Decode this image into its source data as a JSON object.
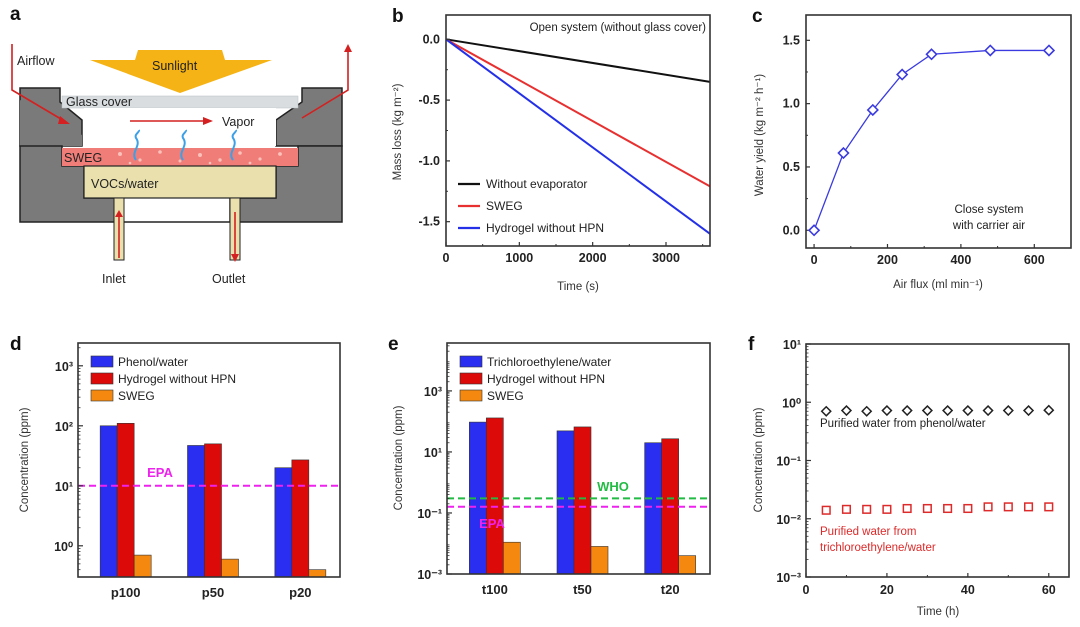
{
  "figure": {
    "panels": [
      "a",
      "b",
      "c",
      "d",
      "e",
      "f"
    ]
  },
  "diagram_a": {
    "letter": "a",
    "labels": {
      "airflow": "Airflow",
      "sunlight": "Sunlight",
      "glass_cover": "Glass cover",
      "vapor": "Vapor",
      "sweg": "SWEG",
      "vocs_water": "VOCs/water",
      "inlet": "Inlet",
      "outlet": "Outlet"
    },
    "colors": {
      "body": "#7a7a7a",
      "sunlight": "#f5b315",
      "glass": "#d9dde0",
      "sweg": "#f07d78",
      "liquid": "#e9e0ad",
      "flow_arrow": "#d42020",
      "vapor": "#3aa0e8"
    }
  },
  "chart_data": [
    {
      "id": "b",
      "letter": "b",
      "type": "line",
      "title": "Open system (without glass cover)",
      "xlabel": "Time (s)",
      "ylabel": "Mass loss (kg m⁻²)",
      "xlim": [
        0,
        3600
      ],
      "ylim": [
        -1.7,
        0.2
      ],
      "xticks": [
        0,
        1000,
        2000,
        3000
      ],
      "xtick_labels": [
        "0",
        "1000",
        "2000",
        "3000"
      ],
      "yticks": [
        0.0,
        -0.5,
        -1.0,
        -1.5
      ],
      "ytick_labels": [
        "0.0",
        "-0.5",
        "-1.0",
        "-1.5"
      ],
      "grid": false,
      "legend_position": "bottom-left",
      "series": [
        {
          "name": "Without evaporator",
          "color": "#111111",
          "x": [
            0,
            3600
          ],
          "y": [
            0,
            -0.35
          ]
        },
        {
          "name": "SWEG",
          "color": "#e83030",
          "x": [
            0,
            3600
          ],
          "y": [
            0,
            -1.21
          ]
        },
        {
          "name": "Hydrogel without HPN",
          "color": "#2430e8",
          "x": [
            0,
            3600
          ],
          "y": [
            0,
            -1.6
          ]
        }
      ]
    },
    {
      "id": "c",
      "letter": "c",
      "type": "line",
      "title": "",
      "annotation": [
        "Close system",
        "with carrier air"
      ],
      "xlabel": "Air flux (ml min⁻¹)",
      "ylabel": "Water yield (kg m⁻² h⁻¹)",
      "xlim": [
        -22,
        700
      ],
      "ylim": [
        -0.14,
        1.7
      ],
      "xticks": [
        0,
        200,
        400,
        600
      ],
      "xtick_labels": [
        "0",
        "200",
        "400",
        "600"
      ],
      "yticks": [
        0.0,
        0.5,
        1.0,
        1.5
      ],
      "ytick_labels": [
        "0.0",
        "0.5",
        "1.0",
        "1.5"
      ],
      "grid": false,
      "marker": "diamond-open",
      "series": [
        {
          "name": "Water yield",
          "color": "#3a3ae0",
          "x": [
            0,
            80,
            160,
            240,
            320,
            480,
            640
          ],
          "y": [
            0.0,
            0.61,
            0.95,
            1.23,
            1.39,
            1.42,
            1.42
          ]
        }
      ]
    },
    {
      "id": "d",
      "letter": "d",
      "type": "bar",
      "yscale": "log",
      "xlabel": "",
      "ylabel": "Concentration (ppm)",
      "ylim_log10": [
        -0.52,
        3.38
      ],
      "yticks_log10": [
        0,
        1,
        2,
        3
      ],
      "ytick_labels": [
        "10⁰",
        "10¹",
        "10²",
        "10³"
      ],
      "categories": [
        "p100",
        "p50",
        "p20"
      ],
      "legend_position": "top-left",
      "series": [
        {
          "name": "Phenol/water",
          "color": "#2a2ef0",
          "values": [
            100,
            47,
            20
          ]
        },
        {
          "name": "Hydrogel without HPN",
          "color": "#dd0a0a",
          "values": [
            110,
            50,
            27
          ]
        },
        {
          "name": "SWEG",
          "color": "#f5890f",
          "values": [
            0.7,
            0.6,
            0.4
          ]
        }
      ],
      "reference_lines": [
        {
          "name": "EPA",
          "value": 10,
          "color": "#ee22ee"
        }
      ]
    },
    {
      "id": "e",
      "letter": "e",
      "type": "bar",
      "yscale": "log",
      "xlabel": "",
      "ylabel": "Concentration (ppm)",
      "ylim_log10": [
        -3,
        4.57
      ],
      "yticks_log10": [
        -3,
        -1,
        1,
        3
      ],
      "ytick_labels": [
        "10⁻³",
        "10⁻¹",
        "10¹",
        "10³"
      ],
      "categories": [
        "t100",
        "t50",
        "t20"
      ],
      "legend_position": "top-left",
      "series": [
        {
          "name": "Trichloroethylene/water",
          "color": "#2a2ef0",
          "values": [
            95,
            49,
            20
          ]
        },
        {
          "name": "Hydrogel without HPN",
          "color": "#dd0a0a",
          "values": [
            130,
            66,
            27
          ]
        },
        {
          "name": "SWEG",
          "color": "#f5890f",
          "values": [
            0.011,
            0.008,
            0.004
          ]
        }
      ],
      "reference_lines": [
        {
          "name": "WHO",
          "value": 0.3,
          "color": "#22bb44"
        },
        {
          "name": "EPA",
          "value": 0.16,
          "color": "#ee22ee"
        }
      ]
    },
    {
      "id": "f",
      "letter": "f",
      "type": "scatter",
      "yscale": "log",
      "xlabel": "Time (h)",
      "ylabel": "Concentration (ppm)",
      "xlim": [
        0,
        65
      ],
      "ylim_log10": [
        -3,
        1
      ],
      "xticks": [
        0,
        20,
        40,
        60
      ],
      "xtick_labels": [
        "0",
        "20",
        "40",
        "60"
      ],
      "yticks_log10": [
        -3,
        -2,
        -1,
        0,
        1
      ],
      "ytick_labels": [
        "10⁻³",
        "10⁻²",
        "10⁻¹",
        "10⁰",
        "10¹"
      ],
      "series": [
        {
          "name": "Purified water from phenol/water",
          "label_lines": [
            "Purified water  from phenol/water"
          ],
          "color": "#222222",
          "marker": "diamond-open",
          "x": [
            5,
            10,
            15,
            20,
            25,
            30,
            35,
            40,
            45,
            50,
            55,
            60
          ],
          "y": [
            0.7,
            0.72,
            0.7,
            0.72,
            0.72,
            0.72,
            0.72,
            0.72,
            0.72,
            0.72,
            0.72,
            0.73
          ]
        },
        {
          "name": "Purified water from trichloroethylene/water",
          "label_lines": [
            "Purified water  from",
            "trichloroethylene/water"
          ],
          "color": "#dd2a2a",
          "marker": "square-open",
          "x": [
            5,
            10,
            15,
            20,
            25,
            30,
            35,
            40,
            45,
            50,
            55,
            60
          ],
          "y": [
            0.014,
            0.0145,
            0.0145,
            0.0145,
            0.015,
            0.015,
            0.015,
            0.015,
            0.016,
            0.016,
            0.016,
            0.016
          ]
        }
      ]
    }
  ]
}
